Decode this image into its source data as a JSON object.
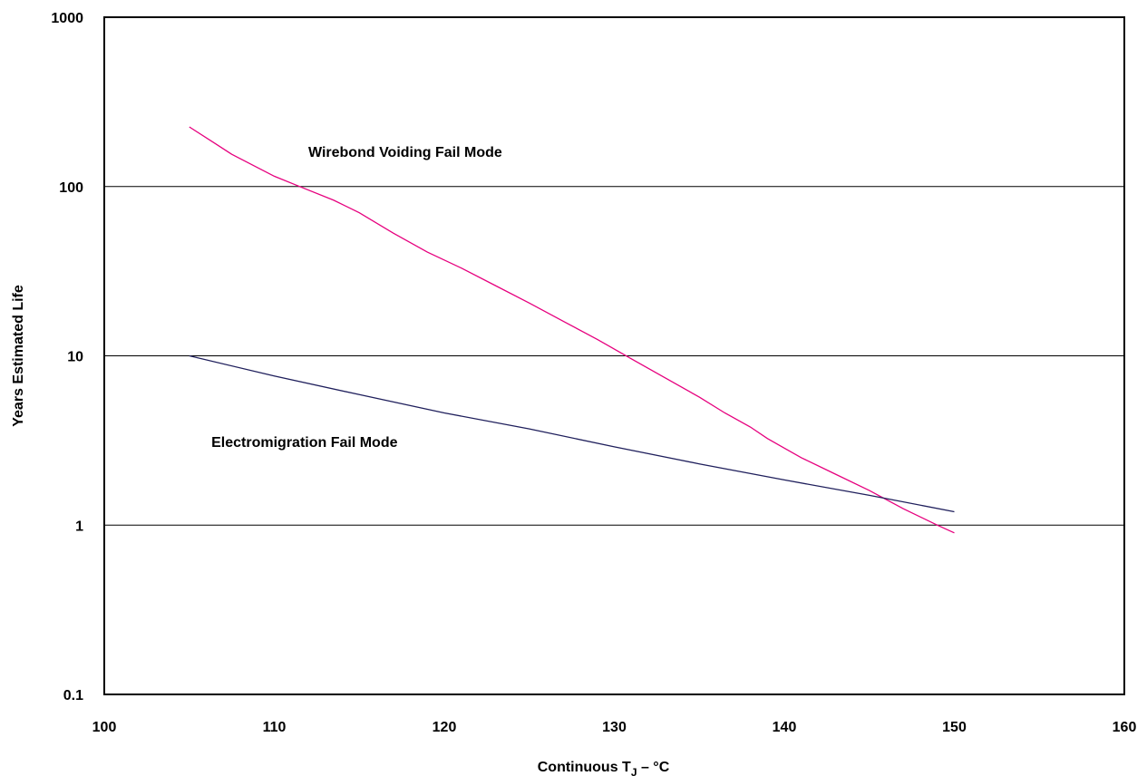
{
  "chart_data": {
    "type": "line",
    "title": "",
    "xlabel_main": "Continuous T",
    "xlabel_sub": "J",
    "xlabel_tail": " – °C",
    "ylabel": "Years Estimated Life",
    "xlim": [
      100,
      160
    ],
    "ylim": [
      0.1,
      1000
    ],
    "yscale": "log",
    "grid": "horizontal",
    "x_ticks": [
      "100",
      "110",
      "120",
      "130",
      "140",
      "150",
      "160"
    ],
    "y_ticks": [
      "0.1",
      "1",
      "10",
      "100",
      "1000"
    ],
    "series": [
      {
        "name": "Wirebond Voiding Fail Mode",
        "color": "#e6007e",
        "x": [
          105,
          106.5,
          107.5,
          110,
          111.5,
          113.5,
          115,
          117,
          119,
          121,
          123,
          125,
          127,
          129,
          131,
          133,
          135,
          136.5,
          138,
          139,
          140,
          141,
          143,
          145,
          147,
          149,
          150
        ],
        "y": [
          225,
          180,
          155,
          115,
          100,
          83,
          70,
          53,
          41,
          33,
          26,
          20.5,
          16,
          12.5,
          9.6,
          7.4,
          5.7,
          4.6,
          3.8,
          3.25,
          2.85,
          2.5,
          2.0,
          1.6,
          1.25,
          1.0,
          0.9
        ]
      },
      {
        "name": "Electromigration Fail Mode",
        "color": "#1f1f5c",
        "x": [
          105,
          110,
          115,
          120,
          125,
          130,
          135,
          140,
          145,
          150
        ],
        "y": [
          10,
          7.6,
          5.9,
          4.6,
          3.7,
          2.9,
          2.3,
          1.85,
          1.5,
          1.2
        ]
      }
    ],
    "annotations": [
      {
        "text": "Wirebond Voiding Fail Mode",
        "x": 112.0,
        "y": 150
      },
      {
        "text": "Electromigration Fail Mode",
        "x": 106.3,
        "y": 2.9
      }
    ]
  }
}
